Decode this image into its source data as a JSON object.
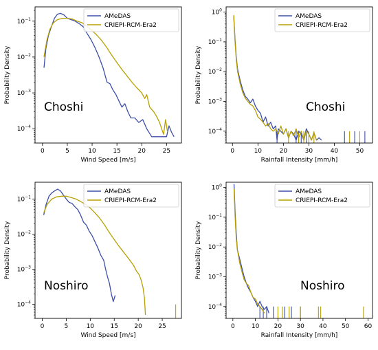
{
  "colors": {
    "amedas": "#3c4ea8",
    "criepi": "#b8a000"
  },
  "chart_data": [
    {
      "type": "line",
      "station": "Choshi",
      "xlabel": "Wind Speed [m/s]",
      "ylabel": "Probability Density",
      "xlim": [
        -1.5,
        28
      ],
      "ylim": [
        4e-05,
        0.25
      ],
      "yscale": "log",
      "legend_position": "top-right",
      "xticks": [
        0,
        5,
        10,
        15,
        20,
        25
      ],
      "series": [
        {
          "name": "AMeDAS",
          "color_key": "amedas",
          "points": [
            [
              0.3,
              0.005
            ],
            [
              0.7,
              0.018
            ],
            [
              1.2,
              0.04
            ],
            [
              1.8,
              0.07
            ],
            [
              2.4,
              0.12
            ],
            [
              3.0,
              0.155
            ],
            [
              3.6,
              0.165
            ],
            [
              4.3,
              0.15
            ],
            [
              5.0,
              0.12
            ],
            [
              5.8,
              0.11
            ],
            [
              6.6,
              0.1
            ],
            [
              7.4,
              0.085
            ],
            [
              8.2,
              0.07
            ],
            [
              9.0,
              0.045
            ],
            [
              9.8,
              0.03
            ],
            [
              10.6,
              0.018
            ],
            [
              11.4,
              0.01
            ],
            [
              12.2,
              0.005
            ],
            [
              13.0,
              0.002
            ],
            [
              13.6,
              0.0018
            ],
            [
              14.2,
              0.0012
            ],
            [
              14.8,
              0.0009
            ],
            [
              15.4,
              0.0006
            ],
            [
              16.0,
              0.0004
            ],
            [
              16.6,
              0.0005
            ],
            [
              17.2,
              0.0003
            ],
            [
              17.8,
              0.0002
            ],
            [
              18.6,
              0.0002
            ],
            [
              19.4,
              0.00015
            ],
            [
              20.2,
              0.00018
            ],
            [
              21.0,
              0.0001
            ],
            [
              22.0,
              6e-05
            ],
            [
              23.0,
              6e-05
            ],
            [
              24.0,
              6e-05
            ],
            [
              25.0,
              6e-05
            ],
            [
              25.5,
              0.00012
            ],
            [
              26.0,
              8e-05
            ],
            [
              26.5,
              6e-05
            ]
          ]
        },
        {
          "name": "CRIEPI-RCM-Era2",
          "color_key": "criepi",
          "points": [
            [
              0.3,
              0.01
            ],
            [
              0.9,
              0.03
            ],
            [
              1.5,
              0.06
            ],
            [
              2.2,
              0.09
            ],
            [
              3.0,
              0.11
            ],
            [
              4.0,
              0.12
            ],
            [
              5.0,
              0.12
            ],
            [
              6.0,
              0.115
            ],
            [
              7.0,
              0.1
            ],
            [
              8.0,
              0.09
            ],
            [
              9.0,
              0.07
            ],
            [
              10.0,
              0.055
            ],
            [
              11.0,
              0.04
            ],
            [
              12.0,
              0.028
            ],
            [
              13.0,
              0.018
            ],
            [
              14.0,
              0.011
            ],
            [
              15.0,
              0.007
            ],
            [
              16.0,
              0.0045
            ],
            [
              17.0,
              0.003
            ],
            [
              18.0,
              0.002
            ],
            [
              19.0,
              0.0014
            ],
            [
              20.0,
              0.001
            ],
            [
              20.6,
              0.0007
            ],
            [
              21.0,
              0.0009
            ],
            [
              21.6,
              0.0004
            ],
            [
              22.4,
              0.0003
            ],
            [
              23.0,
              0.00022
            ],
            [
              23.6,
              0.00015
            ],
            [
              24.0,
              0.0001
            ],
            [
              24.4,
              7e-05
            ],
            [
              24.8,
              0.00018
            ],
            [
              25.2,
              8e-05
            ]
          ]
        }
      ]
    },
    {
      "type": "line",
      "station": "Choshi",
      "xlabel": "Rainfall Intensity [mm/h]",
      "ylabel": "Probability Density",
      "xlim": [
        -2.5,
        55
      ],
      "ylim": [
        4e-05,
        1.5
      ],
      "yscale": "log",
      "legend_position": "top-right",
      "xticks": [
        0,
        10,
        20,
        30,
        40,
        50
      ],
      "series": [
        {
          "name": "AMeDAS",
          "color_key": "amedas",
          "points": [
            [
              0.5,
              0.7
            ],
            [
              1.0,
              0.12
            ],
            [
              1.5,
              0.03
            ],
            [
              2.0,
              0.012
            ],
            [
              3.0,
              0.005
            ],
            [
              4.0,
              0.0025
            ],
            [
              5.0,
              0.0015
            ],
            [
              6.0,
              0.0012
            ],
            [
              7.0,
              0.0009
            ],
            [
              8.0,
              0.0012
            ],
            [
              9.0,
              0.0007
            ],
            [
              10.0,
              0.0005
            ],
            [
              11.0,
              0.0004
            ],
            [
              12.0,
              0.0002
            ],
            [
              13.0,
              0.0003
            ],
            [
              14.0,
              0.00015
            ],
            [
              15.0,
              0.0002
            ],
            [
              16.0,
              0.00012
            ],
            [
              17.0,
              0.00015
            ],
            [
              17.5,
              5e-05
            ],
            [
              18.0,
              0.00012
            ],
            [
              19.0,
              0.0001
            ],
            [
              20.0,
              8e-05
            ],
            [
              21.0,
              0.00012
            ],
            [
              22.0,
              6e-05
            ],
            [
              23.0,
              0.0001
            ],
            [
              24.0,
              8e-05
            ],
            [
              25.0,
              5e-05
            ],
            [
              26.0,
              0.0001
            ],
            [
              27.0,
              8e-05
            ],
            [
              28.0,
              5e-05
            ],
            [
              29.0,
              0.00012
            ],
            [
              30.0,
              8e-05
            ],
            [
              31.0,
              5e-05
            ],
            [
              32.0,
              9e-05
            ],
            [
              33.0,
              5e-05
            ],
            [
              34.0,
              6e-05
            ],
            [
              35.0,
              5e-05
            ]
          ]
        },
        {
          "name": "CRIEPI-RCM-Era2",
          "color_key": "criepi",
          "points": [
            [
              0.5,
              0.8
            ],
            [
              1.0,
              0.1
            ],
            [
              1.5,
              0.025
            ],
            [
              2.0,
              0.01
            ],
            [
              3.0,
              0.004
            ],
            [
              4.0,
              0.002
            ],
            [
              5.0,
              0.0013
            ],
            [
              6.0,
              0.001
            ],
            [
              7.0,
              0.0008
            ],
            [
              8.0,
              0.0007
            ],
            [
              9.0,
              0.0005
            ],
            [
              10.0,
              0.0003
            ],
            [
              11.0,
              0.00025
            ],
            [
              12.0,
              0.0002
            ],
            [
              13.0,
              0.00015
            ],
            [
              14.0,
              0.00018
            ],
            [
              15.0,
              0.00012
            ],
            [
              16.0,
              0.0001
            ],
            [
              17.0,
              0.00012
            ],
            [
              18.0,
              8e-05
            ],
            [
              19.0,
              0.00015
            ],
            [
              20.0,
              8e-05
            ],
            [
              21.0,
              0.00012
            ],
            [
              22.0,
              6e-05
            ],
            [
              23.0,
              0.0001
            ],
            [
              24.0,
              7e-05
            ],
            [
              25.0,
              0.00012
            ],
            [
              26.0,
              6e-05
            ],
            [
              27.0,
              0.0001
            ],
            [
              28.0,
              5e-05
            ],
            [
              29.0,
              0.0001
            ],
            [
              30.0,
              8e-05
            ],
            [
              31.0,
              5e-05
            ],
            [
              32.0,
              9e-05
            ],
            [
              33.0,
              5e-05
            ]
          ]
        }
      ],
      "spikes": [
        {
          "color_key": "amedas",
          "values": [
            17.5,
            25,
            27,
            29,
            44,
            48,
            52
          ]
        },
        {
          "color_key": "criepi",
          "values": [
            22,
            26,
            28,
            30,
            32,
            46,
            50
          ]
        }
      ]
    },
    {
      "type": "line",
      "station": "Noshiro",
      "xlabel": "Wind Speed [m/s]",
      "ylabel": "Probability Density",
      "xlim": [
        -1.5,
        29
      ],
      "ylim": [
        4e-05,
        0.3
      ],
      "yscale": "log",
      "legend_position": "top-right",
      "xticks": [
        0,
        5,
        10,
        15,
        20,
        25
      ],
      "series": [
        {
          "name": "AMeDAS",
          "color_key": "amedas",
          "points": [
            [
              0.3,
              0.035
            ],
            [
              0.8,
              0.07
            ],
            [
              1.4,
              0.12
            ],
            [
              2.0,
              0.15
            ],
            [
              2.6,
              0.17
            ],
            [
              3.2,
              0.19
            ],
            [
              3.8,
              0.17
            ],
            [
              4.4,
              0.13
            ],
            [
              5.0,
              0.1
            ],
            [
              5.6,
              0.08
            ],
            [
              6.2,
              0.075
            ],
            [
              6.8,
              0.06
            ],
            [
              7.4,
              0.05
            ],
            [
              8.0,
              0.035
            ],
            [
              8.6,
              0.022
            ],
            [
              9.2,
              0.018
            ],
            [
              9.8,
              0.012
            ],
            [
              10.4,
              0.009
            ],
            [
              11.0,
              0.006
            ],
            [
              11.6,
              0.004
            ],
            [
              12.2,
              0.0025
            ],
            [
              12.8,
              0.0018
            ],
            [
              13.2,
              0.001
            ],
            [
              13.6,
              0.0006
            ],
            [
              14.0,
              0.0004
            ],
            [
              14.4,
              0.0002
            ],
            [
              14.8,
              0.00012
            ],
            [
              15.2,
              0.00018
            ]
          ]
        },
        {
          "name": "CRIEPI-RCM-Era2",
          "color_key": "criepi",
          "points": [
            [
              0.3,
              0.04
            ],
            [
              1.0,
              0.07
            ],
            [
              2.0,
              0.1
            ],
            [
              3.0,
              0.115
            ],
            [
              4.0,
              0.12
            ],
            [
              5.0,
              0.12
            ],
            [
              6.0,
              0.11
            ],
            [
              7.0,
              0.1
            ],
            [
              8.0,
              0.085
            ],
            [
              9.0,
              0.07
            ],
            [
              10.0,
              0.055
            ],
            [
              11.0,
              0.04
            ],
            [
              12.0,
              0.028
            ],
            [
              13.0,
              0.018
            ],
            [
              14.0,
              0.011
            ],
            [
              15.0,
              0.007
            ],
            [
              16.0,
              0.0045
            ],
            [
              17.0,
              0.003
            ],
            [
              18.0,
              0.002
            ],
            [
              19.0,
              0.0013
            ],
            [
              19.6,
              0.0009
            ],
            [
              20.2,
              0.0007
            ],
            [
              20.6,
              0.0005
            ],
            [
              21.0,
              0.0003
            ],
            [
              21.3,
              0.00015
            ],
            [
              21.5,
              5e-05
            ]
          ]
        }
      ],
      "spikes": [
        {
          "color_key": "criepi",
          "values": [
            27.8
          ]
        }
      ]
    },
    {
      "type": "line",
      "station": "Noshiro",
      "xlabel": "Rainfall Intensity [mm/h]",
      "ylabel": "Probability Density",
      "xlim": [
        -3,
        62
      ],
      "ylim": [
        4e-05,
        1.5
      ],
      "yscale": "log",
      "legend_position": "top-right",
      "xticks": [
        0,
        10,
        20,
        30,
        40,
        50,
        60
      ],
      "series": [
        {
          "name": "AMeDAS",
          "color_key": "amedas",
          "points": [
            [
              0.5,
              1.3
            ],
            [
              1.0,
              0.15
            ],
            [
              1.5,
              0.03
            ],
            [
              2.0,
              0.008
            ],
            [
              3.0,
              0.004
            ],
            [
              4.0,
              0.002
            ],
            [
              5.0,
              0.001
            ],
            [
              6.0,
              0.0006
            ],
            [
              7.0,
              0.0004
            ],
            [
              8.0,
              0.0003
            ],
            [
              9.0,
              0.0002
            ],
            [
              10.0,
              0.00015
            ],
            [
              11.0,
              0.0001
            ],
            [
              12.0,
              0.00015
            ],
            [
              13.0,
              0.0001
            ],
            [
              14.0,
              8e-05
            ],
            [
              15.0,
              0.0001
            ],
            [
              16.0,
              6e-05
            ]
          ]
        },
        {
          "name": "CRIEPI-RCM-Era2",
          "color_key": "criepi",
          "points": [
            [
              0.5,
              0.9
            ],
            [
              1.0,
              0.1
            ],
            [
              1.5,
              0.02
            ],
            [
              2.0,
              0.008
            ],
            [
              3.0,
              0.003
            ],
            [
              4.0,
              0.0015
            ],
            [
              5.0,
              0.0008
            ],
            [
              6.0,
              0.0006
            ],
            [
              7.0,
              0.0005
            ],
            [
              8.0,
              0.0003
            ],
            [
              9.0,
              0.0002
            ],
            [
              10.0,
              0.00018
            ],
            [
              11.0,
              0.00012
            ],
            [
              12.0,
              0.0001
            ],
            [
              13.0,
              8e-05
            ],
            [
              14.0,
              6e-05
            ]
          ]
        }
      ],
      "spikes": [
        {
          "color_key": "amedas",
          "values": [
            12,
            13.5,
            15,
            18,
            23,
            26,
            30
          ]
        },
        {
          "color_key": "criepi",
          "values": [
            20,
            22,
            25,
            30,
            38,
            39,
            58
          ]
        }
      ]
    }
  ]
}
